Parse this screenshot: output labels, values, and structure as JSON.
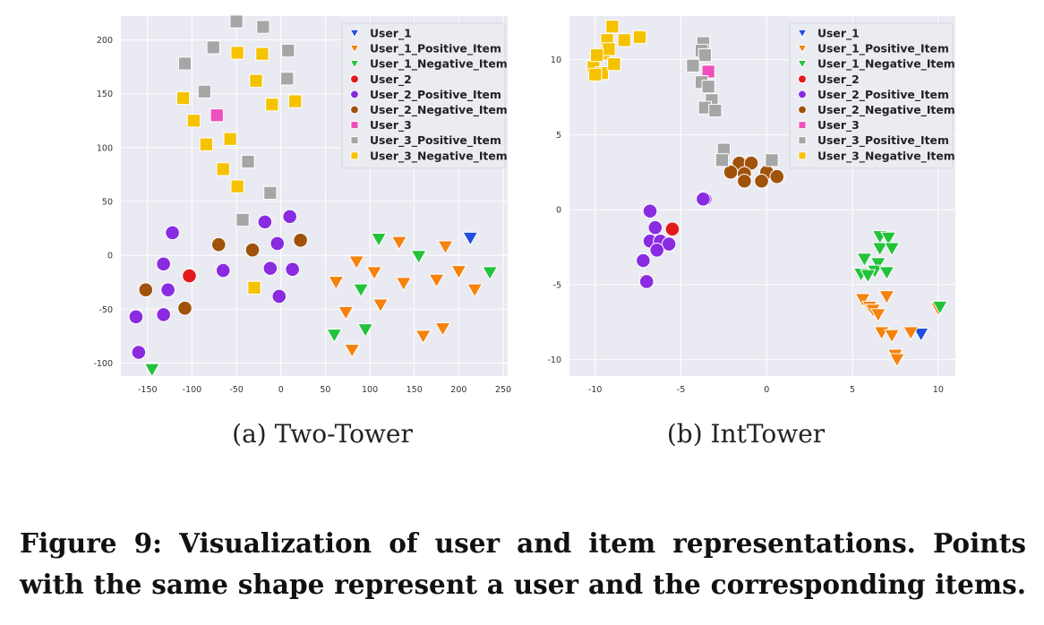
{
  "chart_data": [
    {
      "type": "scatter",
      "panel": "a",
      "subcaption": "(a)  Two-Tower",
      "xlim": [
        -180,
        255
      ],
      "ylim": [
        -112,
        222
      ],
      "xticks": [
        -150,
        -100,
        -50,
        0,
        50,
        100,
        150,
        200,
        250
      ],
      "yticks": [
        -100,
        -50,
        0,
        50,
        100,
        150,
        200
      ],
      "legend_position": "top-right",
      "grid": true,
      "series": [
        {
          "name": "User_1",
          "color": "#1f4fe0",
          "marker": "triangle",
          "points": [
            [
              213,
              16
            ]
          ]
        },
        {
          "name": "User_1_Positive_Item",
          "color": "#f5820d",
          "marker": "triangle",
          "points": [
            [
              133,
              12
            ],
            [
              185,
              8
            ],
            [
              85,
              -6
            ],
            [
              62,
              -25
            ],
            [
              105,
              -16
            ],
            [
              138,
              -26
            ],
            [
              200,
              -15
            ],
            [
              218,
              -32
            ],
            [
              175,
              -23
            ],
            [
              112,
              -46
            ],
            [
              73,
              -53
            ],
            [
              80,
              -88
            ],
            [
              160,
              -75
            ],
            [
              182,
              -68
            ]
          ]
        },
        {
          "name": "User_1_Negative_Item",
          "color": "#22c33a",
          "marker": "triangle",
          "points": [
            [
              110,
              15
            ],
            [
              155,
              -1
            ],
            [
              235,
              -16
            ],
            [
              90,
              -32
            ],
            [
              95,
              -69
            ],
            [
              60,
              -74
            ],
            [
              -145,
              -106
            ]
          ]
        },
        {
          "name": "User_2",
          "color": "#e31a1c",
          "marker": "circle",
          "points": [
            [
              -103,
              -19
            ]
          ]
        },
        {
          "name": "User_2_Positive_Item",
          "color": "#8a2be2",
          "marker": "circle",
          "points": [
            [
              -122,
              21
            ],
            [
              -132,
              -8
            ],
            [
              -127,
              -32
            ],
            [
              -132,
              -55
            ],
            [
              -163,
              -57
            ],
            [
              -160,
              -90
            ],
            [
              -65,
              -14
            ],
            [
              -18,
              31
            ],
            [
              10,
              36
            ],
            [
              -4,
              11
            ],
            [
              -12,
              -12
            ],
            [
              13,
              -13
            ],
            [
              -2,
              -38
            ]
          ]
        },
        {
          "name": "User_2_Negative_Item",
          "color": "#a0520a",
          "marker": "circle",
          "points": [
            [
              -152,
              -32
            ],
            [
              -108,
              -49
            ],
            [
              -70,
              10
            ],
            [
              -32,
              5
            ],
            [
              22,
              14
            ]
          ]
        },
        {
          "name": "User_3",
          "color": "#f04fbe",
          "marker": "square",
          "points": [
            [
              -72,
              130
            ]
          ]
        },
        {
          "name": "User_3_Positive_Item",
          "color": "#a6a6a6",
          "marker": "square",
          "points": [
            [
              -50,
              217
            ],
            [
              -20,
              212
            ],
            [
              -76,
              193
            ],
            [
              8,
              190
            ],
            [
              -108,
              178
            ],
            [
              7,
              164
            ],
            [
              -86,
              152
            ],
            [
              -37,
              87
            ],
            [
              -12,
              58
            ],
            [
              -43,
              33
            ]
          ]
        },
        {
          "name": "User_3_Negative_Item",
          "color": "#f5c200",
          "marker": "square",
          "points": [
            [
              -49,
              188
            ],
            [
              -21,
              187
            ],
            [
              -28,
              162
            ],
            [
              -110,
              146
            ],
            [
              -10,
              140
            ],
            [
              16,
              143
            ],
            [
              -98,
              125
            ],
            [
              -57,
              108
            ],
            [
              -84,
              103
            ],
            [
              -65,
              80
            ],
            [
              -49,
              64
            ],
            [
              -30,
              -30
            ]
          ]
        }
      ]
    },
    {
      "type": "scatter",
      "panel": "b",
      "subcaption": "(b)  IntTower",
      "xlim": [
        -11.5,
        11.0
      ],
      "ylim": [
        -11.1,
        12.9
      ],
      "xticks": [
        -10,
        -5,
        0,
        5,
        10
      ],
      "yticks": [
        -10,
        -5,
        0,
        5,
        10
      ],
      "legend_position": "top-right",
      "grid": true,
      "series": [
        {
          "name": "User_1",
          "color": "#1f4fe0",
          "marker": "triangle",
          "points": [
            [
              9.0,
              -8.3
            ]
          ]
        },
        {
          "name": "User_1_Positive_Item",
          "color": "#f5820d",
          "marker": "triangle",
          "points": [
            [
              5.6,
              -6.0
            ],
            [
              6.0,
              -6.5
            ],
            [
              6.2,
              -6.7
            ],
            [
              6.5,
              -7.0
            ],
            [
              7.0,
              -5.8
            ],
            [
              6.7,
              -8.2
            ],
            [
              7.3,
              -8.4
            ],
            [
              7.5,
              -9.7
            ],
            [
              7.6,
              -10.0
            ],
            [
              8.4,
              -8.2
            ],
            [
              10.0,
              -6.6
            ],
            [
              -7.0,
              -4.8
            ]
          ]
        },
        {
          "name": "User_1_Negative_Item",
          "color": "#22c33a",
          "marker": "triangle",
          "points": [
            [
              6.6,
              -1.8
            ],
            [
              7.1,
              -1.9
            ],
            [
              6.6,
              -2.6
            ],
            [
              7.3,
              -2.6
            ],
            [
              5.7,
              -3.3
            ],
            [
              6.5,
              -3.6
            ],
            [
              6.3,
              -4.1
            ],
            [
              5.5,
              -4.3
            ],
            [
              5.9,
              -4.4
            ],
            [
              7.0,
              -4.2
            ],
            [
              10.1,
              -6.5
            ]
          ]
        },
        {
          "name": "User_2",
          "color": "#e31a1c",
          "marker": "circle",
          "points": [
            [
              -5.5,
              -1.3
            ]
          ]
        },
        {
          "name": "User_2_Positive_Item",
          "color": "#8a2be2",
          "marker": "circle",
          "points": [
            [
              -6.8,
              -0.1
            ],
            [
              -6.5,
              -1.2
            ],
            [
              -6.8,
              -2.1
            ],
            [
              -6.2,
              -2.1
            ],
            [
              -5.7,
              -2.3
            ],
            [
              -6.4,
              -2.7
            ],
            [
              -7.2,
              -3.4
            ],
            [
              -7.0,
              -4.8
            ],
            [
              -3.6,
              0.7
            ],
            [
              -3.7,
              0.7
            ]
          ]
        },
        {
          "name": "User_2_Negative_Item",
          "color": "#a0520a",
          "marker": "circle",
          "points": [
            [
              -1.6,
              3.1
            ],
            [
              -0.9,
              3.1
            ],
            [
              0.0,
              2.5
            ],
            [
              -2.1,
              2.5
            ],
            [
              -1.3,
              2.4
            ],
            [
              0.6,
              2.2
            ],
            [
              -1.3,
              1.9
            ],
            [
              -0.3,
              1.9
            ]
          ]
        },
        {
          "name": "User_3",
          "color": "#f04fbe",
          "marker": "square",
          "points": [
            [
              -3.4,
              9.2
            ]
          ]
        },
        {
          "name": "User_3_Positive_Item",
          "color": "#a6a6a6",
          "marker": "square",
          "points": [
            [
              -3.7,
              11.1
            ],
            [
              -3.8,
              10.6
            ],
            [
              -3.6,
              10.3
            ],
            [
              -4.3,
              9.6
            ],
            [
              -3.8,
              8.5
            ],
            [
              -3.4,
              8.2
            ],
            [
              -3.2,
              7.3
            ],
            [
              -3.6,
              6.8
            ],
            [
              -3.0,
              6.6
            ],
            [
              -2.5,
              4.0
            ],
            [
              -2.6,
              3.3
            ],
            [
              0.3,
              3.3
            ]
          ]
        },
        {
          "name": "User_3_Negative_Item",
          "color": "#f5c200",
          "marker": "square",
          "points": [
            [
              -9.0,
              12.2
            ],
            [
              -9.3,
              11.3
            ],
            [
              -8.3,
              11.3
            ],
            [
              -7.4,
              11.5
            ],
            [
              -9.5,
              10.4
            ],
            [
              -9.2,
              10.7
            ],
            [
              -10.1,
              9.5
            ],
            [
              -9.6,
              9.1
            ],
            [
              -10.0,
              9.0
            ],
            [
              -9.9,
              10.3
            ],
            [
              -8.9,
              9.7
            ]
          ]
        }
      ]
    }
  ],
  "figure_caption": {
    "line1": "Figure 9: Visualization of user and item representations. Points",
    "line2": "with the same shape represent a user and the corresponding items."
  }
}
